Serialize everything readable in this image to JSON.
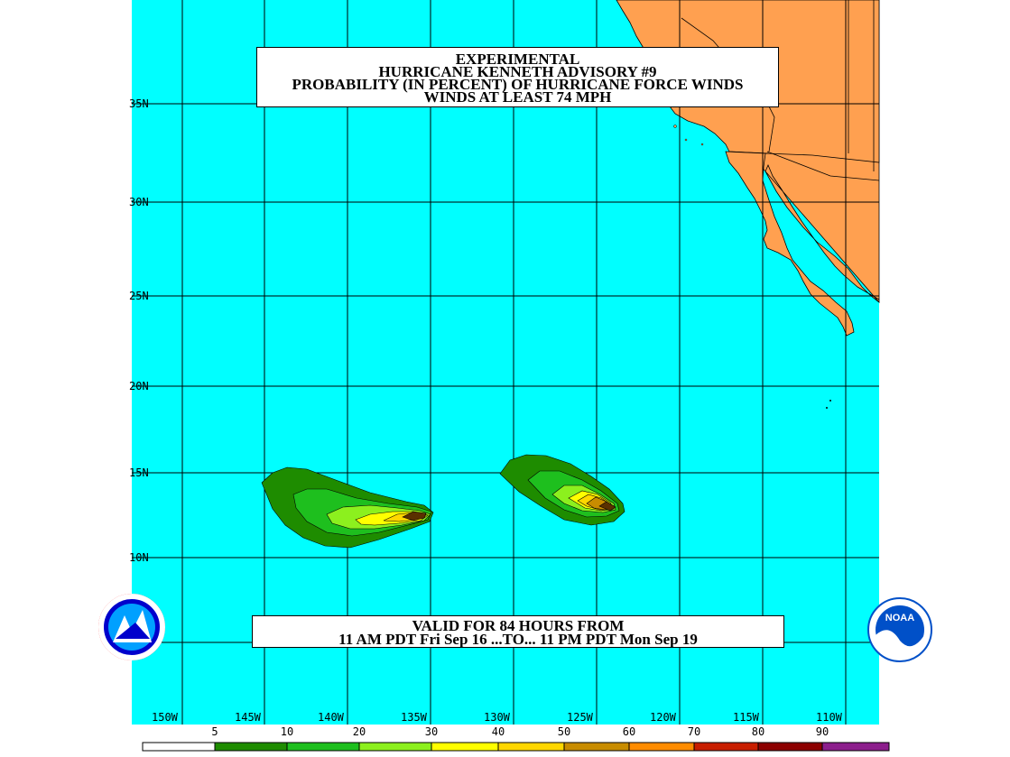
{
  "title": {
    "line1": "EXPERIMENTAL",
    "line2": "HURRICANE KENNETH ADVISORY #9",
    "line3": "PROBABILITY (IN PERCENT) OF HURRICANE FORCE WINDS",
    "line4": "WINDS AT LEAST 74 MPH"
  },
  "valid": {
    "line1": "VALID FOR 84 HOURS FROM",
    "line2": "11 AM PDT Fri Sep 16 ...TO... 11 PM PDT Mon Sep 19"
  },
  "lat_labels": [
    "35N",
    "30N",
    "25N",
    "20N",
    "15N",
    "10N"
  ],
  "lon_labels": [
    "150W",
    "145W",
    "140W",
    "135W",
    "130W",
    "125W",
    "120W",
    "115W",
    "110W"
  ],
  "legend": {
    "thresholds": [
      "5",
      "10",
      "20",
      "30",
      "40",
      "50",
      "60",
      "70",
      "80",
      "90"
    ],
    "colors": [
      "#ffffff",
      "#1e8c00",
      "#1ebf1e",
      "#8cf01e",
      "#ffff00",
      "#ffd700",
      "#c88c00",
      "#ff8c00",
      "#c81e00",
      "#8c0000",
      "#8c1e8c"
    ]
  },
  "colors": {
    "ocean": "#00ffff",
    "land": "#ffa050"
  },
  "logos": {
    "left": "nws-logo",
    "right": "noaa-logo"
  }
}
